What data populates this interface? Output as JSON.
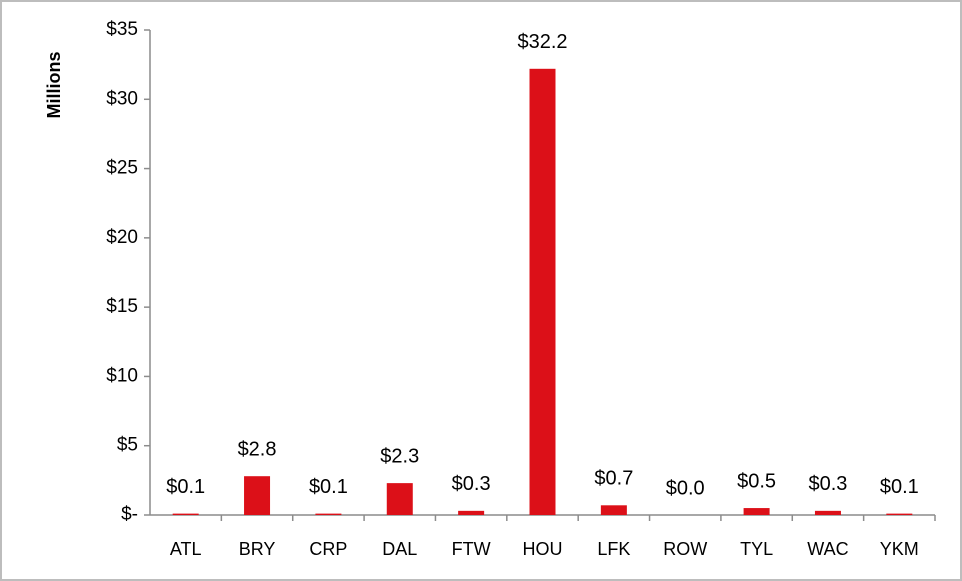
{
  "chart_data": {
    "type": "bar",
    "y_label": "Millions",
    "categories": [
      "ATL",
      "BRY",
      "CRP",
      "DAL",
      "FTW",
      "HOU",
      "LFK",
      "ROW",
      "TYL",
      "WAC",
      "YKM"
    ],
    "values": [
      0.1,
      2.8,
      0.1,
      2.3,
      0.3,
      32.2,
      0.7,
      0.0,
      0.5,
      0.3,
      0.1
    ],
    "value_labels": [
      "$0.1",
      "$2.8",
      "$0.1",
      "$2.3",
      "$0.3",
      "$32.2",
      "$0.7",
      "$0.0",
      "$0.5",
      "$0.3",
      "$0.1"
    ],
    "color": "#dc1018",
    "ylim": [
      0,
      35
    ],
    "yticks": [
      {
        "value": 0,
        "label": "$-"
      },
      {
        "value": 5,
        "label": "$5"
      },
      {
        "value": 10,
        "label": "$10"
      },
      {
        "value": 15,
        "label": "$15"
      },
      {
        "value": 20,
        "label": "$20"
      },
      {
        "value": 25,
        "label": "$25"
      },
      {
        "value": 30,
        "label": "$30"
      },
      {
        "value": 35,
        "label": "$35"
      }
    ],
    "grid": false
  }
}
